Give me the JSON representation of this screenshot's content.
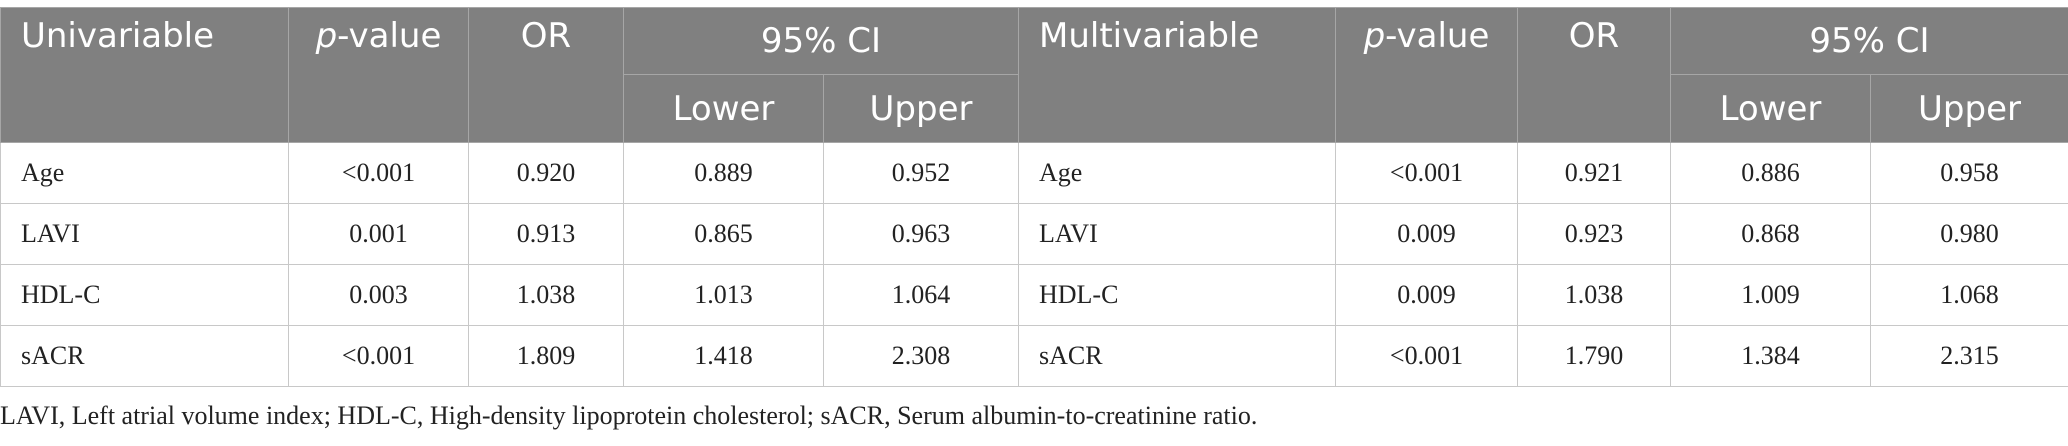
{
  "table": {
    "header": {
      "top": [
        "Univariable",
        "p-value",
        "OR",
        "95% CI",
        "Multivariable",
        "p-value",
        "OR",
        "95% CI"
      ],
      "sub": [
        "Lower",
        "Upper",
        "Lower",
        "Upper"
      ]
    },
    "rows": [
      [
        "Age",
        "<0.001",
        "0.920",
        "0.889",
        "0.952",
        "Age",
        "<0.001",
        "0.921",
        "0.886",
        "0.958"
      ],
      [
        "LAVI",
        "0.001",
        "0.913",
        "0.865",
        "0.963",
        "LAVI",
        "0.009",
        "0.923",
        "0.868",
        "0.980"
      ],
      [
        "HDL-C",
        "0.003",
        "1.038",
        "1.013",
        "1.064",
        "HDL-C",
        "0.009",
        "1.038",
        "1.009",
        "1.068"
      ],
      [
        "sACR",
        "<0.001",
        "1.809",
        "1.418",
        "2.308",
        "sACR",
        "<0.001",
        "1.790",
        "1.384",
        "2.315"
      ]
    ]
  },
  "footnote": "LAVI, Left atrial volume index; HDL-C, High-density lipoprotein cholesterol; sACR, Serum albumin-to-creatinine ratio."
}
